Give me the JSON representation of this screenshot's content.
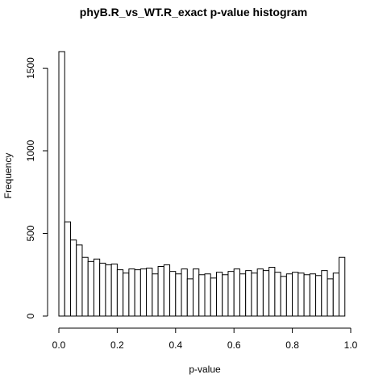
{
  "chart_data": {
    "type": "bar",
    "title": "phyB.R_vs_WT.R_exact p-value histogram",
    "xlabel": "p-value",
    "ylabel": "Frequency",
    "bin_width": 0.02,
    "xlim": [
      0,
      1
    ],
    "ylim": [
      0,
      1600
    ],
    "x_ticks": [
      "0.0",
      "0.2",
      "0.4",
      "0.6",
      "0.8",
      "1.0"
    ],
    "y_ticks": [
      "0",
      "500",
      "1000",
      "1500"
    ],
    "values": [
      1600,
      570,
      460,
      430,
      355,
      330,
      345,
      320,
      310,
      315,
      280,
      260,
      285,
      280,
      285,
      290,
      255,
      300,
      310,
      270,
      255,
      285,
      225,
      285,
      250,
      255,
      230,
      265,
      250,
      270,
      285,
      255,
      275,
      260,
      285,
      275,
      295,
      265,
      240,
      255,
      265,
      260,
      250,
      255,
      245,
      275,
      225,
      260,
      355
    ],
    "bar_fill": "#ffffff",
    "bar_stroke": "#000000",
    "grid": false
  }
}
